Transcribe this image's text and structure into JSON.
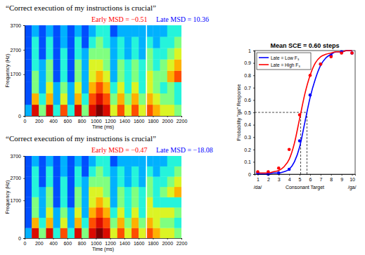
{
  "chart_data": [
    {
      "type": "heatmap",
      "title": "“Correct execution of my instructions is crucial”",
      "annotations": [
        {
          "text": "Early MSD = −0.51",
          "color": "#ff0000"
        },
        {
          "text": "Late MSD = 10.36",
          "color": "#0000ff"
        }
      ],
      "xlabel": "Time (ms)",
      "ylabel": "Frequency (Hz)",
      "xlim": [
        0,
        2200
      ],
      "ylim": [
        0,
        3700
      ],
      "xticks": [
        0,
        200,
        400,
        600,
        800,
        1000,
        1200,
        1400,
        1600,
        1800,
        2000,
        2200
      ],
      "yticks": [
        0,
        1700,
        2700,
        3700
      ],
      "xbins": [
        0,
        100,
        200,
        300,
        400,
        500,
        600,
        700,
        800,
        900,
        1000,
        1100,
        1200,
        1300,
        1400,
        1500,
        1600,
        1700,
        1800,
        1900,
        2000,
        2100,
        2200
      ],
      "ybins": [
        0,
        462.5,
        925,
        1387.5,
        1850,
        2312.5,
        2775,
        3237.5,
        3700
      ],
      "cells": [
        [
          3,
          9,
          5,
          9,
          4,
          8,
          4,
          9,
          5,
          9,
          10,
          9,
          6,
          8,
          6,
          8,
          6,
          8,
          7,
          6,
          6,
          5
        ],
        [
          2,
          7,
          4,
          7,
          3,
          6,
          3,
          7,
          4,
          8,
          9,
          8,
          5,
          7,
          5,
          7,
          5,
          7,
          6,
          5,
          5,
          4
        ],
        [
          2,
          5,
          3,
          6,
          3,
          5,
          3,
          6,
          3,
          7,
          8,
          7,
          4,
          6,
          4,
          6,
          4,
          6,
          5,
          4,
          5,
          4
        ],
        [
          2,
          5,
          3,
          5,
          2,
          4,
          2,
          5,
          3,
          6,
          7,
          6,
          3,
          5,
          4,
          5,
          4,
          6,
          5,
          5,
          7,
          8
        ],
        [
          2,
          4,
          3,
          5,
          2,
          4,
          2,
          5,
          3,
          6,
          6,
          5,
          3,
          5,
          4,
          5,
          4,
          5,
          4,
          5,
          6,
          7
        ],
        [
          2,
          4,
          2,
          4,
          2,
          4,
          2,
          4,
          3,
          5,
          5,
          5,
          3,
          4,
          3,
          4,
          3,
          5,
          4,
          4,
          5,
          6
        ],
        [
          2,
          4,
          2,
          4,
          2,
          3,
          2,
          4,
          2,
          4,
          5,
          4,
          3,
          4,
          3,
          4,
          3,
          4,
          3,
          4,
          4,
          5
        ],
        [
          2,
          3,
          2,
          3,
          2,
          3,
          2,
          3,
          2,
          3,
          4,
          4,
          2,
          3,
          3,
          3,
          3,
          3,
          3,
          3,
          4,
          4
        ]
      ],
      "color_range": [
        0,
        10
      ],
      "boundaries": [
        1710
      ]
    },
    {
      "type": "heatmap",
      "title": "“Correct execution of my instructions is crucial”",
      "annotations": [
        {
          "text": "Early MSD = −0.47",
          "color": "#ff0000"
        },
        {
          "text": "Late MSD = −18.08",
          "color": "#0000ff"
        }
      ],
      "xlabel": "Time (ms)",
      "ylabel": "Frequency (Hz)",
      "xlim": [
        0,
        2200
      ],
      "ylim": [
        0,
        3700
      ],
      "xticks": [
        0,
        200,
        400,
        600,
        800,
        1000,
        1200,
        1400,
        1600,
        1800,
        2000,
        2200
      ],
      "yticks": [
        0,
        1700,
        2700,
        3700
      ],
      "xbins": [
        0,
        100,
        200,
        300,
        400,
        500,
        600,
        700,
        800,
        900,
        1000,
        1100,
        1200,
        1300,
        1400,
        1500,
        1600,
        1700,
        1800,
        1900,
        2000,
        2100,
        2200
      ],
      "ybins": [
        0,
        462.5,
        925,
        1387.5,
        1850,
        2312.5,
        2775,
        3237.5,
        3700
      ],
      "cells": [
        [
          3,
          9,
          5,
          9,
          4,
          8,
          4,
          9,
          5,
          9,
          10,
          9,
          6,
          8,
          6,
          8,
          6,
          8,
          7,
          6,
          6,
          5
        ],
        [
          2,
          7,
          4,
          7,
          3,
          6,
          3,
          7,
          4,
          8,
          9,
          8,
          5,
          7,
          5,
          7,
          5,
          7,
          6,
          5,
          5,
          4
        ],
        [
          2,
          5,
          3,
          6,
          3,
          5,
          3,
          6,
          3,
          7,
          8,
          7,
          4,
          6,
          4,
          6,
          4,
          6,
          6,
          6,
          6,
          5
        ],
        [
          2,
          5,
          3,
          5,
          2,
          4,
          2,
          5,
          3,
          6,
          7,
          6,
          3,
          5,
          4,
          5,
          4,
          6,
          4,
          4,
          4,
          4
        ],
        [
          2,
          4,
          3,
          5,
          2,
          4,
          2,
          5,
          3,
          6,
          6,
          5,
          3,
          5,
          4,
          5,
          4,
          5,
          4,
          5,
          6,
          7
        ],
        [
          2,
          4,
          2,
          4,
          2,
          4,
          2,
          4,
          3,
          5,
          5,
          5,
          3,
          4,
          3,
          4,
          3,
          5,
          4,
          4,
          5,
          6
        ],
        [
          2,
          4,
          2,
          4,
          2,
          3,
          2,
          4,
          2,
          4,
          5,
          4,
          3,
          4,
          3,
          4,
          3,
          4,
          3,
          4,
          4,
          5
        ],
        [
          2,
          3,
          2,
          3,
          2,
          3,
          2,
          3,
          2,
          3,
          4,
          4,
          2,
          3,
          3,
          3,
          3,
          3,
          3,
          3,
          4,
          4
        ]
      ],
      "color_range": [
        0,
        10
      ],
      "boundaries": [
        1710
      ]
    },
    {
      "type": "line",
      "title": "Mean SCE = 0.60 steps",
      "xlabel": "Consonant Target",
      "x_end_labels": [
        "/da/",
        "/ga/"
      ],
      "ylabel": "Probability \"ga\" Response",
      "xlim": [
        0.7,
        10.3
      ],
      "ylim": [
        0,
        1
      ],
      "xticks": [
        1,
        2,
        3,
        4,
        5,
        6,
        7,
        8,
        9,
        10
      ],
      "yticks": [
        0,
        0.1,
        0.2,
        0.3,
        0.4,
        0.5,
        0.6,
        0.7,
        0.8,
        0.9,
        1
      ],
      "legend": "upper left",
      "criterion": 0.5,
      "thresholds": [
        5.1,
        5.7
      ],
      "series": [
        {
          "name": "Late = Low F₃",
          "type": "line",
          "color": "#0000ff",
          "x": [
            1,
            1.5,
            2,
            2.5,
            3,
            3.5,
            4,
            4.5,
            5,
            5.5,
            6,
            6.5,
            7,
            7.5,
            8,
            8.5,
            9,
            9.5,
            10
          ],
          "values": [
            0,
            0,
            0,
            0.01,
            0.01,
            0.02,
            0.04,
            0.1,
            0.22,
            0.42,
            0.62,
            0.77,
            0.88,
            0.94,
            0.97,
            0.99,
            0.99,
            1,
            1
          ]
        },
        {
          "name": "Late = High F₃",
          "type": "line",
          "color": "#ff0000",
          "x": [
            1,
            1.5,
            2,
            2.5,
            3,
            3.5,
            4,
            4.5,
            5,
            5.5,
            6,
            6.5,
            7,
            7.5,
            8,
            8.5,
            9,
            9.5,
            10
          ],
          "values": [
            0.01,
            0.01,
            0.01,
            0.02,
            0.03,
            0.06,
            0.12,
            0.25,
            0.45,
            0.65,
            0.8,
            0.9,
            0.95,
            0.97,
            0.98,
            0.99,
            0.99,
            1,
            1
          ]
        },
        {
          "type": "scatter",
          "marker": "circle",
          "color": "#0000ff",
          "x": [
            1,
            2,
            3,
            4,
            5,
            6,
            7,
            8,
            9,
            10
          ],
          "values": [
            0.01,
            0,
            0.01,
            0.04,
            0.27,
            0.64,
            0.89,
            0.96,
            0.99,
            0.98
          ]
        },
        {
          "type": "scatter",
          "marker": "circle",
          "color": "#ff0000",
          "x": [
            1,
            2,
            3,
            4,
            5,
            6,
            7,
            8,
            9,
            10
          ],
          "values": [
            0.02,
            0.02,
            0.05,
            0.2,
            0.48,
            0.8,
            0.89,
            0.95,
            0.98,
            0.98
          ]
        }
      ]
    }
  ]
}
